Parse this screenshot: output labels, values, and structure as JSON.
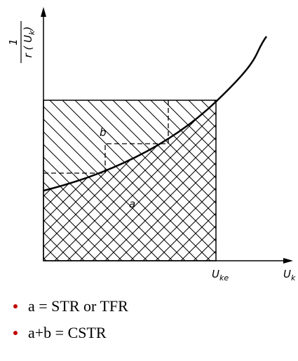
{
  "y_label": {
    "numerator": "1",
    "denominator_main": "r ( U",
    "denominator_sub": "k",
    "denominator_close": ")"
  },
  "regions": {
    "upper": "b",
    "lower": "a"
  },
  "x_labels": {
    "end_main": "U",
    "end_sub": "ke",
    "axis_main": "U",
    "axis_sub": "k"
  },
  "bullets": [
    "a = STR or TFR",
    "a+b = CSTR"
  ]
}
